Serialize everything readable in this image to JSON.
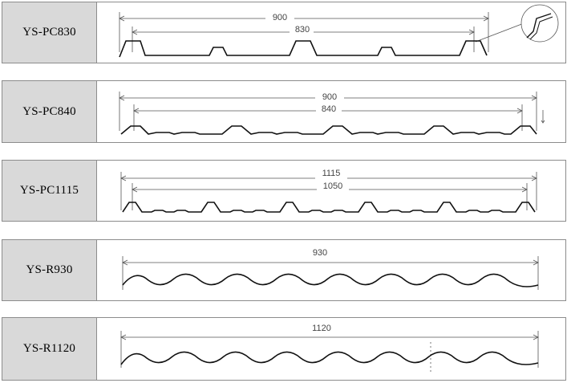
{
  "profiles": [
    {
      "model": "YS-PC830",
      "dims": [
        "900",
        "830"
      ]
    },
    {
      "model": "YS-PC840",
      "dims": [
        "900",
        "840"
      ]
    },
    {
      "model": "YS-PC1115",
      "dims": [
        "1115",
        "1050"
      ]
    },
    {
      "model": "YS-R930",
      "dims": [
        "930"
      ]
    },
    {
      "model": "YS-R1120",
      "dims": [
        "1120"
      ]
    }
  ]
}
